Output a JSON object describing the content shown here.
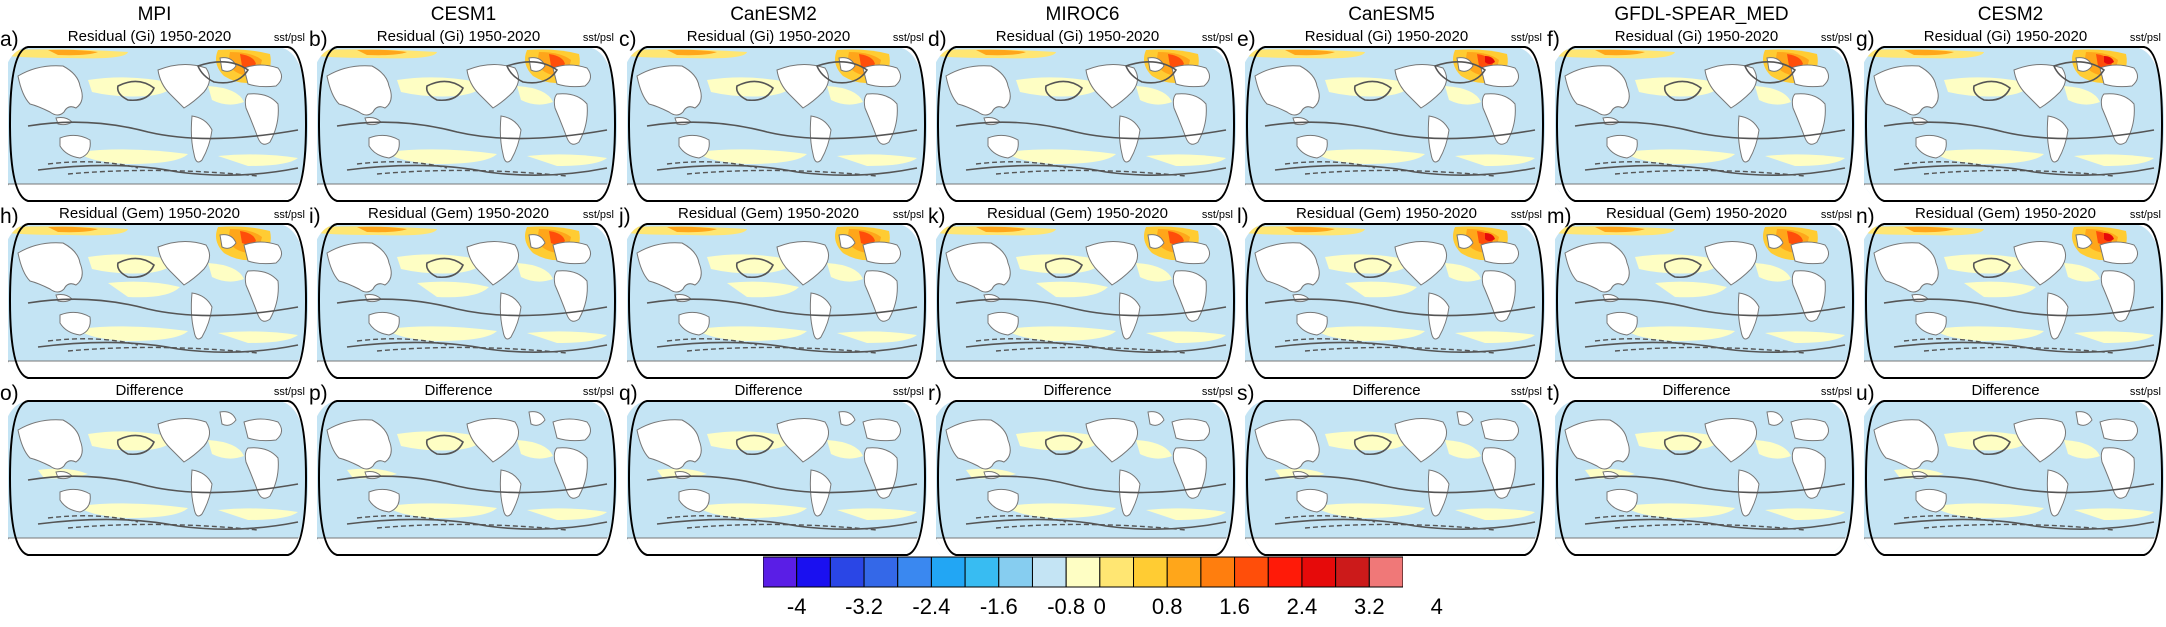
{
  "models": [
    "MPI",
    "CESM1",
    "CanESM2",
    "MIROC6",
    "CanESM5",
    "GFDL-SPEAR_MED",
    "CESM2"
  ],
  "rows": [
    {
      "title": "Residual (Gi) 1950-2020",
      "letters": [
        "a)",
        "b)",
        "c)",
        "d)",
        "e)",
        "f)",
        "g)"
      ]
    },
    {
      "title": "Residual (Gem) 1950-2020",
      "letters": [
        "h)",
        "i)",
        "j)",
        "k)",
        "l)",
        "m)",
        "n)"
      ]
    },
    {
      "title": "Difference",
      "letters": [
        "o)",
        "p)",
        "q)",
        "r)",
        "s)",
        "t)",
        "u)"
      ]
    }
  ],
  "variable_label": "sst/psl",
  "colorbar": {
    "colors": [
      "#5a1ee6",
      "#1a10f0",
      "#2a46e6",
      "#3468e8",
      "#3a88f0",
      "#22a6f4",
      "#38bcf2",
      "#86cdf0",
      "#c4e4f4",
      "#fefec4",
      "#ffe672",
      "#ffcc33",
      "#ffa61a",
      "#ff7e0e",
      "#ff4e0a",
      "#ff1a08",
      "#e60a0a",
      "#cc1a1a",
      "#f07878"
    ],
    "tick_labels": [
      "-4",
      "-3.2",
      "-2.4",
      "-1.6",
      "-0.8",
      "0",
      "0.8",
      "1.6",
      "2.4",
      "3.2",
      "4"
    ]
  }
}
